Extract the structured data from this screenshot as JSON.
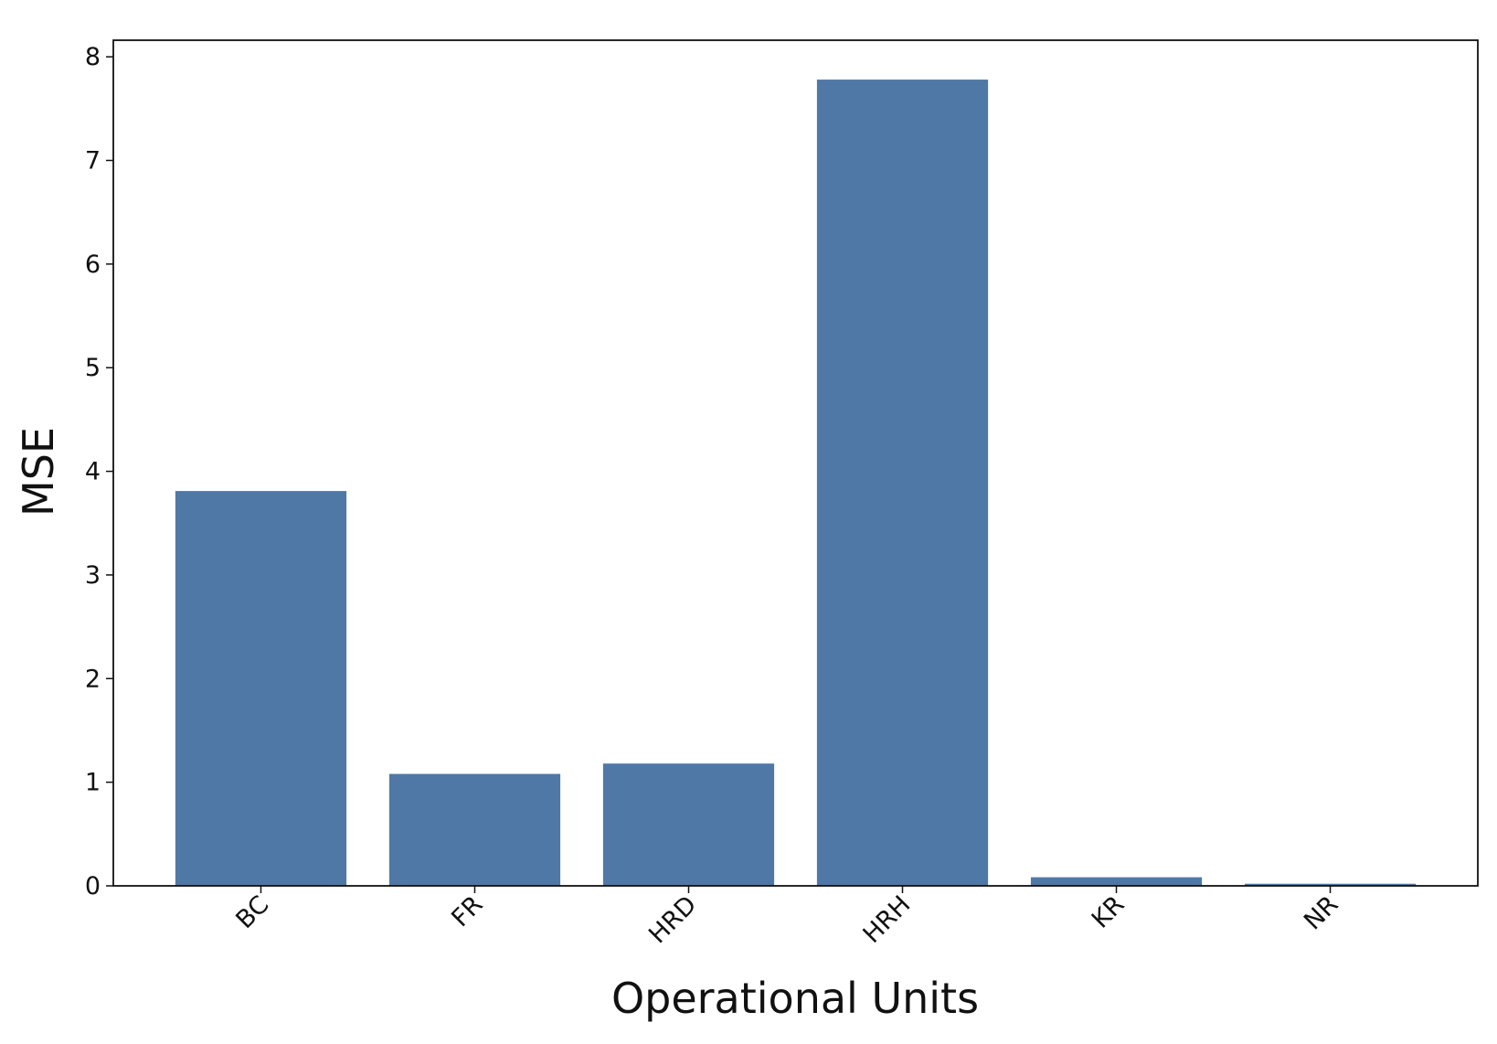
{
  "chart_data": {
    "type": "bar",
    "x_label": "Operational Units",
    "y_label": "MSE",
    "categories": [
      "BC",
      "FR",
      "HRD",
      "HRH",
      "KR",
      "NR"
    ],
    "values": [
      3.81,
      1.08,
      1.18,
      7.78,
      0.083,
      0.02
    ],
    "color": "#4f78a6",
    "ylim": [
      0,
      8.16
    ],
    "yticks": [
      0,
      1,
      2,
      3,
      4,
      5,
      6,
      7,
      8
    ]
  }
}
